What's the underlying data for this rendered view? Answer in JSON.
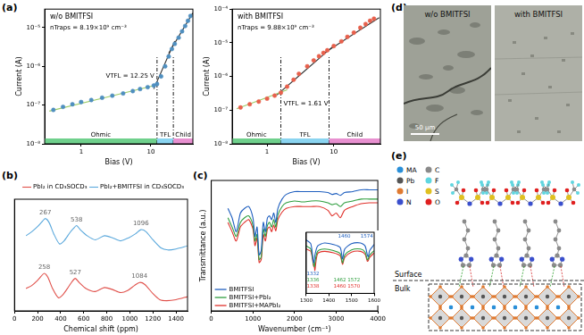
{
  "panel_labels": [
    "(a)",
    "(b)",
    "(c)",
    "(d)",
    "(e)"
  ],
  "chart_data": [
    {
      "type": "scatter",
      "title": "w/o BMITFSI",
      "annotations": [
        "nTraps = 8.19×10⁹ cm⁻³",
        "VTFL = 12.25 V"
      ],
      "x_label": "Bias (V)",
      "y_label": "Current (A)",
      "log": true,
      "grid": false,
      "xlim": [
        0.3,
        40
      ],
      "xticks": [
        1,
        10
      ],
      "ylim": [
        1e-08,
        3e-05
      ],
      "yticks": [
        {
          "value": 1e-08,
          "label": "10⁻⁸"
        },
        {
          "value": 1e-07,
          "label": "10⁻⁷"
        },
        {
          "value": 1e-06,
          "label": "10⁻⁶"
        },
        {
          "value": 1e-05,
          "label": "10⁻⁵"
        }
      ],
      "regions": [
        {
          "label": "Ohmic",
          "from": 0.3,
          "to": 12.25,
          "color": "#6fd08c"
        },
        {
          "label": "TFL",
          "from": 12.25,
          "to": 21,
          "color": "#8ad4f0"
        },
        {
          "label": "Child",
          "from": 21,
          "to": 40,
          "color": "#e890d0"
        }
      ],
      "series": [
        {
          "type": "scatter",
          "color": "#4f8fc0",
          "marker": "circle",
          "x": [
            0.4,
            0.55,
            0.75,
            1.0,
            1.4,
            2.0,
            2.8,
            4,
            5.5,
            7,
            9,
            11,
            12.25,
            14,
            16,
            18,
            20,
            22,
            25,
            28,
            31,
            34,
            37
          ],
          "values": [
            7.5e-08,
            9e-08,
            1.05e-07,
            1.2e-07,
            1.35e-07,
            1.55e-07,
            1.75e-07,
            2e-07,
            2.3e-07,
            2.6e-07,
            2.9e-07,
            3.2e-07,
            3.5e-07,
            5.5e-07,
            1e-06,
            1.8e-06,
            2.8e-06,
            3.8e-06,
            5.5e-06,
            8e-06,
            1.1e-05,
            1.5e-05,
            2e-05
          ]
        },
        {
          "type": "line",
          "color": "#9ccc65",
          "line_style": "solid",
          "x": [
            0.35,
            13
          ],
          "values": [
            7e-08,
            3.4e-07
          ]
        },
        {
          "type": "line",
          "color": "#333333",
          "line_style": "solid",
          "x": [
            11,
            22
          ],
          "values": [
            2.6e-07,
            4.5e-06
          ]
        },
        {
          "type": "line",
          "color": "#333333",
          "line_style": "solid",
          "x": [
            18,
            40
          ],
          "values": [
            2.2e-06,
            2.4e-05
          ]
        }
      ]
    },
    {
      "type": "scatter",
      "title": "with BMITFSI",
      "annotations": [
        "nTraps = 9.88×10⁹ cm⁻³",
        "VTFL = 1.61 V"
      ],
      "x_label": "Bias (V)",
      "y_label": "Current (A)",
      "log": true,
      "grid": false,
      "xlim": [
        0.3,
        50
      ],
      "xticks": [
        1,
        10
      ],
      "ylim": [
        1e-08,
        0.0001
      ],
      "yticks": [
        {
          "value": 1e-08,
          "label": "10⁻⁸"
        },
        {
          "value": 1e-07,
          "label": "10⁻⁷"
        },
        {
          "value": 1e-06,
          "label": "10⁻⁶"
        },
        {
          "value": 1e-05,
          "label": "10⁻⁵"
        },
        {
          "value": 0.0001,
          "label": "10⁻⁴"
        }
      ],
      "regions": [
        {
          "label": "Ohmic",
          "from": 0.3,
          "to": 1.61,
          "color": "#6fd08c"
        },
        {
          "label": "TFL",
          "from": 1.61,
          "to": 8.5,
          "color": "#8ad4f0"
        },
        {
          "label": "Child",
          "from": 8.5,
          "to": 50,
          "color": "#e890d0"
        }
      ],
      "series": [
        {
          "type": "scatter",
          "color": "#e8604c",
          "marker": "circle",
          "x": [
            0.4,
            0.55,
            0.75,
            1.0,
            1.3,
            1.61,
            2,
            2.5,
            3,
            4,
            5,
            6,
            7,
            8,
            10,
            13,
            16,
            20,
            25,
            30,
            35,
            40
          ],
          "values": [
            1.2e-07,
            1.5e-07,
            1.8e-07,
            2.2e-07,
            2.7e-07,
            3.3e-07,
            5e-07,
            8e-07,
            1.2e-06,
            2e-06,
            3e-06,
            4e-06,
            5e-06,
            6e-06,
            8e-06,
            1.1e-05,
            1.5e-05,
            2e-05,
            2.8e-05,
            3.6e-05,
            4.5e-05,
            5.2e-05
          ]
        },
        {
          "type": "line",
          "color": "#9ccc65",
          "line_style": "solid",
          "x": [
            0.35,
            2
          ],
          "values": [
            1.1e-07,
            4e-07
          ]
        },
        {
          "type": "line",
          "color": "#333333",
          "line_style": "solid",
          "x": [
            1.4,
            9.5
          ],
          "values": [
            2.8e-07,
            7.5e-06
          ]
        },
        {
          "type": "line",
          "color": "#333333",
          "line_style": "solid",
          "x": [
            7,
            48
          ],
          "values": [
            4.8e-06,
            5.6e-05
          ]
        }
      ]
    },
    {
      "type": "line",
      "x_label": "Chemical shift (ppm)",
      "tick_labels": "x",
      "grid": false,
      "legend": "top",
      "xlim": [
        0,
        1500
      ],
      "xticks": [
        0,
        200,
        400,
        600,
        800,
        1000,
        1200,
        1400
      ],
      "ylim": [
        0,
        11
      ],
      "yticks": [],
      "series": [
        {
          "name": "PbI₂ in CD₃SOCD₃",
          "color": "#e0504a",
          "x": [
            100,
            150,
            200,
            230,
            258,
            290,
            330,
            380,
            420,
            470,
            500,
            527,
            560,
            620,
            700,
            780,
            850,
            920,
            980,
            1040,
            1084,
            1130,
            1200,
            1260,
            1320,
            1400,
            1500
          ],
          "values": [
            2.2,
            2.5,
            3.0,
            3.4,
            3.7,
            3.3,
            2.2,
            1.3,
            1.6,
            2.4,
            2.9,
            3.2,
            2.8,
            2.2,
            1.9,
            2.3,
            2.1,
            1.8,
            2.0,
            2.5,
            2.8,
            2.6,
            1.7,
            1.1,
            1.0,
            1.1,
            1.4
          ],
          "peaks": [
            258,
            527,
            1084
          ]
        },
        {
          "name": "PbI₂+BMITFSI in CD₃SOCD₃",
          "color": "#5aa8dc",
          "x": [
            100,
            150,
            200,
            240,
            267,
            300,
            340,
            390,
            430,
            480,
            510,
            538,
            570,
            630,
            700,
            780,
            850,
            920,
            990,
            1050,
            1096,
            1140,
            1200,
            1270,
            1330,
            1400,
            1500
          ],
          "values": [
            7.4,
            7.8,
            8.3,
            8.8,
            9.1,
            8.7,
            7.6,
            6.6,
            6.9,
            7.7,
            8.1,
            8.4,
            8.0,
            7.4,
            7.0,
            7.4,
            7.2,
            6.9,
            7.2,
            7.6,
            8.0,
            7.8,
            7.0,
            6.2,
            6.0,
            6.1,
            6.4
          ],
          "peaks": [
            267,
            538,
            1096
          ]
        }
      ]
    },
    {
      "type": "line",
      "x_label": "Wavenumber (cm⁻¹)",
      "y_label": "Transmittance (a.u.)",
      "tick_labels": "x",
      "grid": false,
      "legend": "lower left",
      "xlim": [
        0,
        4000
      ],
      "xticks": [
        0,
        1000,
        2000,
        3000,
        4000
      ],
      "ylim": [
        -40,
        100
      ],
      "yticks": [],
      "x": [
        400,
        500,
        600,
        700,
        800,
        900,
        1000,
        1050,
        1100,
        1150,
        1200,
        1250,
        1300,
        1350,
        1400,
        1450,
        1500,
        1550,
        1600,
        1700,
        1800,
        2000,
        2200,
        2400,
        2600,
        2800,
        2900,
        3000,
        3100,
        3200,
        3400,
        3600,
        3800,
        4000
      ],
      "series": [
        {
          "name": "BMITFSI",
          "color": "#1f5fbf",
          "values": [
            70,
            60,
            45,
            65,
            70,
            72,
            60,
            40,
            50,
            20,
            25,
            55,
            45,
            60,
            62,
            58,
            65,
            55,
            70,
            80,
            85,
            88,
            88,
            88,
            88,
            87,
            85,
            86,
            84,
            87,
            88,
            90,
            90,
            90
          ]
        },
        {
          "name": "BMITFSI+PbI₂",
          "color": "#2e9e3e",
          "values": [
            60,
            50,
            40,
            55,
            60,
            62,
            52,
            35,
            42,
            15,
            18,
            48,
            40,
            52,
            55,
            50,
            58,
            50,
            63,
            72,
            76,
            78,
            77,
            78,
            78,
            76,
            74,
            75,
            72,
            76,
            78,
            80,
            80,
            80
          ]
        },
        {
          "name": "BMITFSI+MAPbI₂",
          "color": "#e0302a",
          "values": [
            55,
            45,
            35,
            50,
            55,
            58,
            48,
            30,
            38,
            12,
            15,
            42,
            35,
            48,
            50,
            45,
            52,
            46,
            58,
            66,
            70,
            72,
            72,
            72,
            72,
            68,
            62,
            65,
            60,
            68,
            72,
            75,
            76,
            76
          ]
        }
      ],
      "inset": {
        "type": "line",
        "tick_labels": "x",
        "grid": false,
        "xlim": [
          1300,
          1600
        ],
        "xticks": [
          1300,
          1400,
          1500,
          1600
        ],
        "ylim": [
          0,
          80
        ],
        "yticks": [],
        "x": [
          1300,
          1320,
          1332,
          1336,
          1338,
          1350,
          1380,
          1420,
          1450,
          1460,
          1470,
          1500,
          1540,
          1560,
          1570,
          1574,
          1580,
          1600
        ],
        "series": [
          {
            "color": "#1f5fbf",
            "values": [
              70,
              65,
              40,
              45,
              50,
              62,
              66,
              64,
              60,
              45,
              58,
              65,
              66,
              62,
              50,
              48,
              56,
              64
            ]
          },
          {
            "color": "#2e9e3e",
            "values": [
              62,
              58,
              38,
              35,
              40,
              55,
              58,
              56,
              52,
              40,
              50,
              57,
              58,
              54,
              44,
              45,
              50,
              56
            ]
          },
          {
            "color": "#e0302a",
            "values": [
              58,
              55,
              36,
              34,
              30,
              52,
              55,
              53,
              49,
              38,
              47,
              54,
              55,
              51,
              42,
              43,
              47,
              53
            ]
          }
        ],
        "annotations": [
          {
            "text": "1332",
            "x": 1302,
            "y": 25,
            "color": "#1f5fbf"
          },
          {
            "text": "1336",
            "x": 1302,
            "y": 17,
            "color": "#2e9e3e"
          },
          {
            "text": "1338",
            "x": 1302,
            "y": 9,
            "color": "#e0302a"
          },
          {
            "text": "1460",
            "x": 1440,
            "y": 75,
            "color": "#1f5fbf"
          },
          {
            "text": "1574",
            "x": 1540,
            "y": 75,
            "color": "#1f5fbf"
          },
          {
            "text": "1462 1572",
            "x": 1420,
            "y": 17,
            "color": "#2e9e3e"
          },
          {
            "text": "1460 1570",
            "x": 1420,
            "y": 9,
            "color": "#e0302a"
          }
        ]
      }
    }
  ],
  "micrographs": {
    "labels": [
      "w/o BMITFSI",
      "with BMITFSI"
    ],
    "scale_bar": "50 μm"
  },
  "schematic": {
    "species": [
      {
        "label": "MA",
        "color": "#2a8fd8"
      },
      {
        "label": "Pb",
        "color": "#555555"
      },
      {
        "label": "I",
        "color": "#e07a30"
      },
      {
        "label": "N",
        "color": "#3a4fcd"
      },
      {
        "label": "C",
        "color": "#8a8a8a"
      },
      {
        "label": "F",
        "color": "#5fd6e0"
      },
      {
        "label": "S",
        "color": "#e0c020"
      },
      {
        "label": "O",
        "color": "#e02020"
      }
    ],
    "surface": "Surface",
    "bulk": "Bulk"
  }
}
